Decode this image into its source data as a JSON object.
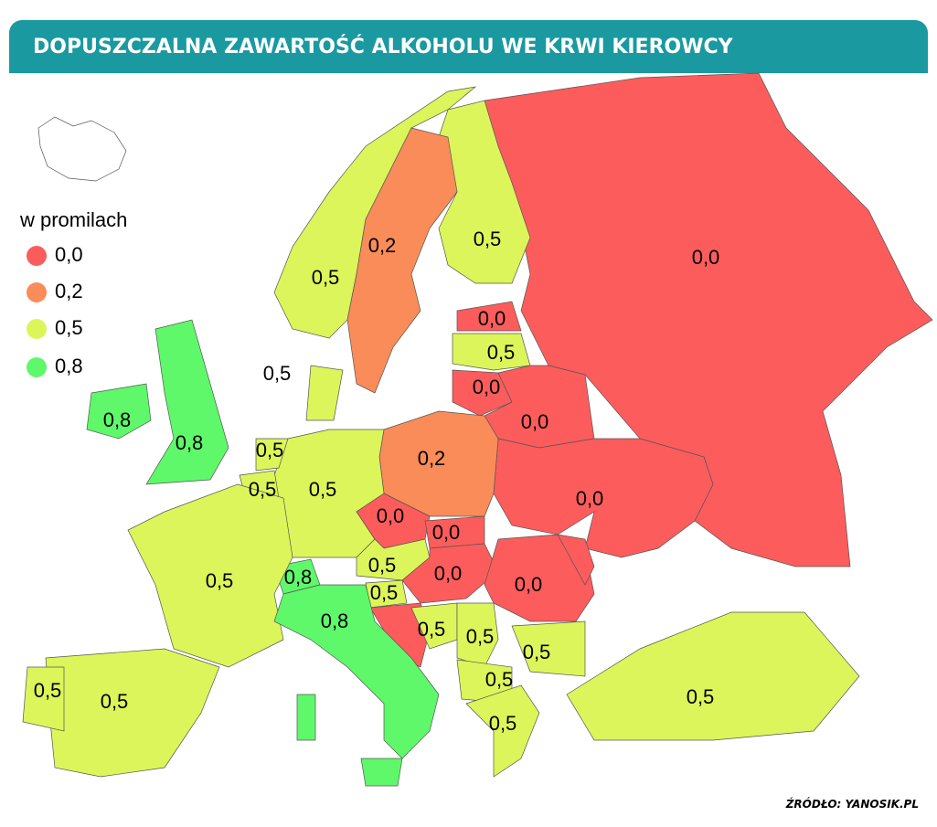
{
  "header": {
    "title": "DOPUSZCZALNA ZAWARTOŚĆ ALKOHOLU WE KRWI KIEROWCY"
  },
  "legend": {
    "title": "w promilach",
    "items": [
      {
        "label": "0,0",
        "color": "#fd5c5c"
      },
      {
        "label": "0,2",
        "color": "#f98c58"
      },
      {
        "label": "0,5",
        "color": "#dcf55a"
      },
      {
        "label": "0,8",
        "color": "#5ef86a"
      }
    ]
  },
  "map": {
    "labels": [
      "0,0",
      "0,2",
      "0,5",
      "0,5",
      "0,0",
      "0,5",
      "0,0",
      "0,0",
      "0,0",
      "0,2",
      "0,5",
      "0,8",
      "0,8",
      "0,5",
      "0,5",
      "0,5",
      "0,0",
      "0,0",
      "0,5",
      "0,0",
      "0,0",
      "0,8",
      "0,5",
      "0,5",
      "0,8",
      "0,5",
      "0,5",
      "0,5",
      "0,5",
      "0,5",
      "0,5",
      "0,5",
      "0,5"
    ]
  },
  "footer": {
    "source": "ŹRÓDŁO: YANOSIK.PL"
  }
}
